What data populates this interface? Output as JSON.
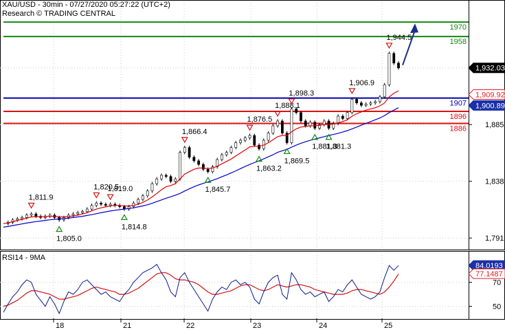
{
  "header": {
    "title": "XAU/USD - 30min - 07/27/2020 05:27:22 (UTC+2)",
    "research": "Research © TRADING CENTRAL"
  },
  "colors": {
    "green_level": "#118811",
    "red_level": "#dd1111",
    "blue_level": "#0000aa",
    "ma_red": "#dd0000",
    "ma_blue": "#0000cc",
    "price": "#000000",
    "arrow": "#1a2f8c",
    "tag_black": "#000000",
    "tag_red": "#e31e24",
    "tag_blue": "#1b2fa8",
    "rsi_blue": "#0b1a8a",
    "rsi_red": "#d11111",
    "marker_green": "#0f8a0f",
    "marker_red": "#d11111"
  },
  "chart_data": [
    {
      "type": "line",
      "name": "price",
      "title": "XAU/USD - 30min - 07/27/2020 05:27:22 (UTC+2)",
      "subtitle": "Research © TRADING CENTRAL",
      "ylim": [
        1782,
        1986
      ],
      "y_ticks": [
        "1,791",
        "1,838",
        "1,885"
      ],
      "x_ticks": [
        "18",
        "21",
        "22",
        "23",
        "24",
        "25"
      ],
      "grid": true,
      "levels": [
        {
          "value": 1970,
          "label": "1970",
          "color": "green"
        },
        {
          "value": 1958,
          "label": "1958",
          "color": "green"
        },
        {
          "value": 1907,
          "label": "1907",
          "color": "blue"
        },
        {
          "value": 1896,
          "label": "1896",
          "color": "red"
        },
        {
          "value": 1886,
          "label": "1886",
          "color": "red"
        }
      ],
      "tags": [
        {
          "value": 1932.03,
          "label": "1,932.03",
          "style": "black"
        },
        {
          "value": 1909.92,
          "label": "1,909.92",
          "style": "red"
        },
        {
          "value": 1900.89,
          "label": "1,900.89",
          "style": "blue"
        }
      ],
      "swing_labels": [
        {
          "i": 6,
          "value": 1811.9,
          "label": "1,811.9",
          "kind": "high"
        },
        {
          "i": 12,
          "value": 1805.0,
          "label": "1,805.0",
          "kind": "low"
        },
        {
          "i": 20,
          "value": 1820.5,
          "label": "1,820.5",
          "kind": "high"
        },
        {
          "i": 23,
          "value": 1819.0,
          "label": "1,819.0",
          "kind": "high"
        },
        {
          "i": 26,
          "value": 1814.8,
          "label": "1,814.8",
          "kind": "low"
        },
        {
          "i": 39,
          "value": 1866.4,
          "label": "1,866.4",
          "kind": "high"
        },
        {
          "i": 44,
          "value": 1845.7,
          "label": "1,845.7",
          "kind": "low"
        },
        {
          "i": 53,
          "value": 1876.5,
          "label": "1,876.5",
          "kind": "high"
        },
        {
          "i": 55,
          "value": 1863.2,
          "label": "1,863.2",
          "kind": "low"
        },
        {
          "i": 59,
          "value": 1888.1,
          "label": "1,888.1",
          "kind": "high"
        },
        {
          "i": 61,
          "value": 1869.5,
          "label": "1,869.5",
          "kind": "low"
        },
        {
          "i": 62,
          "value": 1898.3,
          "label": "1,898.3",
          "kind": "high"
        },
        {
          "i": 67,
          "value": 1881.3,
          "label": "1,881.3",
          "kind": "low"
        },
        {
          "i": 70,
          "value": 1881.3,
          "label": "1,881.3",
          "kind": "low"
        },
        {
          "i": 75,
          "value": 1906.9,
          "label": "1,906.9",
          "kind": "high"
        },
        {
          "i": 83,
          "value": 1944.5,
          "label": "1,944.5",
          "kind": "high"
        }
      ],
      "series": [
        {
          "values": [
            1803,
            1804,
            1806,
            1807,
            1808,
            1810,
            1811,
            1809,
            1808,
            1809,
            1810,
            1808,
            1806,
            1808,
            1810,
            1811,
            1812,
            1813,
            1815,
            1818,
            1820,
            1819,
            1818,
            1819,
            1818,
            1817,
            1815,
            1817,
            1820,
            1823,
            1826,
            1830,
            1836,
            1840,
            1843,
            1842,
            1838,
            1840,
            1862,
            1866,
            1858,
            1855,
            1852,
            1848,
            1846,
            1850,
            1856,
            1860,
            1862,
            1866,
            1870,
            1872,
            1874,
            1876,
            1868,
            1865,
            1872,
            1878,
            1884,
            1888,
            1878,
            1870,
            1898,
            1895,
            1888,
            1884,
            1887,
            1882,
            1885,
            1888,
            1882,
            1886,
            1892,
            1890,
            1895,
            1906,
            1903,
            1901,
            1902,
            1903,
            1904,
            1908,
            1918,
            1944,
            1936,
            1932
          ]
        },
        {
          "values": [
            1803,
            1803.5,
            1804.5,
            1805.5,
            1806.5,
            1807.5,
            1808.5,
            1808.7,
            1808.7,
            1808.8,
            1809,
            1809,
            1808.5,
            1808.5,
            1808.8,
            1809.3,
            1810,
            1811,
            1812,
            1813.5,
            1815,
            1816,
            1816.8,
            1817.5,
            1818,
            1818,
            1817.5,
            1817.6,
            1818,
            1819,
            1820.5,
            1822.5,
            1825,
            1828,
            1831,
            1833.5,
            1834.5,
            1836,
            1840,
            1844,
            1846,
            1848,
            1849,
            1849,
            1848.5,
            1849,
            1850.5,
            1852.5,
            1854.5,
            1856.5,
            1859,
            1861.5,
            1864,
            1866.5,
            1867,
            1867,
            1868,
            1870,
            1872.5,
            1875,
            1876,
            1876,
            1879,
            1881.5,
            1883,
            1883.5,
            1884,
            1884,
            1884.5,
            1885,
            1885,
            1885.5,
            1886.5,
            1887.5,
            1889,
            1892,
            1894,
            1895.5,
            1897,
            1898,
            1899,
            1900.5,
            1903,
            1908,
            1911,
            1913
          ]
        },
        {
          "values": [
            1800,
            1800.6,
            1801.3,
            1802,
            1802.7,
            1803.4,
            1804,
            1804.6,
            1805.1,
            1805.6,
            1806.1,
            1806.5,
            1806.8,
            1807.1,
            1807.5,
            1808,
            1808.5,
            1809,
            1809.7,
            1810.4,
            1811.2,
            1812,
            1812.7,
            1813.4,
            1814,
            1814.5,
            1815,
            1815.5,
            1816,
            1816.8,
            1817.6,
            1818.6,
            1819.8,
            1821.2,
            1822.6,
            1824,
            1825.2,
            1826.5,
            1828,
            1830,
            1831.8,
            1833.5,
            1835,
            1836.3,
            1837.5,
            1838.8,
            1840.2,
            1841.8,
            1843.3,
            1845,
            1846.7,
            1848.5,
            1850.3,
            1852,
            1853.5,
            1855,
            1856.6,
            1858.3,
            1860,
            1862,
            1863.3,
            1864.5,
            1866.3,
            1868,
            1869.5,
            1870.8,
            1872,
            1873,
            1874,
            1875,
            1876,
            1876.8,
            1877.8,
            1878.8,
            1880,
            1881.5,
            1883,
            1884.5,
            1886,
            1887.5,
            1889,
            1890.5,
            1892.5,
            1895,
            1897,
            1899
          ]
        }
      ]
    },
    {
      "type": "line",
      "name": "RSI14 - 9MA",
      "title": "RSI14 - 9MA",
      "ylim": [
        40,
        95
      ],
      "y_ticks": [
        "50",
        "70"
      ],
      "tags": [
        {
          "value": 84.0193,
          "label": "84.0193",
          "style": "blue"
        },
        {
          "value": 77.1487,
          "label": "77.1487",
          "style": "red"
        }
      ],
      "series": [
        {
          "values": [
            45,
            52,
            58,
            62,
            68,
            72,
            70,
            60,
            55,
            50,
            58,
            52,
            44,
            54,
            62,
            60,
            64,
            70,
            72,
            68,
            64,
            60,
            62,
            58,
            56,
            54,
            60,
            64,
            70,
            74,
            78,
            80,
            82,
            85,
            78,
            72,
            62,
            58,
            74,
            78,
            70,
            64,
            58,
            52,
            46,
            56,
            62,
            66,
            64,
            70,
            72,
            68,
            70,
            66,
            56,
            52,
            62,
            70,
            74,
            76,
            60,
            56,
            78,
            72,
            64,
            60,
            62,
            58,
            60,
            62,
            54,
            58,
            64,
            62,
            68,
            72,
            66,
            60,
            58,
            56,
            58,
            62,
            74,
            84,
            80,
            84
          ]
        },
        {
          "values": [
            50,
            51,
            53,
            55,
            58,
            61,
            63,
            63,
            62,
            61,
            60,
            58,
            56,
            56,
            57,
            58,
            59,
            61,
            63,
            65,
            66,
            65,
            64,
            63,
            62,
            60,
            60,
            61,
            63,
            65,
            68,
            71,
            74,
            77,
            78,
            78,
            76,
            73,
            72,
            72,
            71,
            70,
            68,
            65,
            62,
            60,
            60,
            61,
            62,
            63,
            65,
            67,
            68,
            68,
            66,
            64,
            63,
            64,
            66,
            68,
            67,
            66,
            67,
            68,
            68,
            67,
            66,
            64,
            63,
            62,
            61,
            60,
            60,
            60,
            61,
            63,
            64,
            64,
            63,
            62,
            61,
            60,
            62,
            66,
            71,
            77
          ]
        }
      ],
      "x_ticks": [
        "18",
        "21",
        "22",
        "23",
        "24",
        "25"
      ]
    }
  ]
}
